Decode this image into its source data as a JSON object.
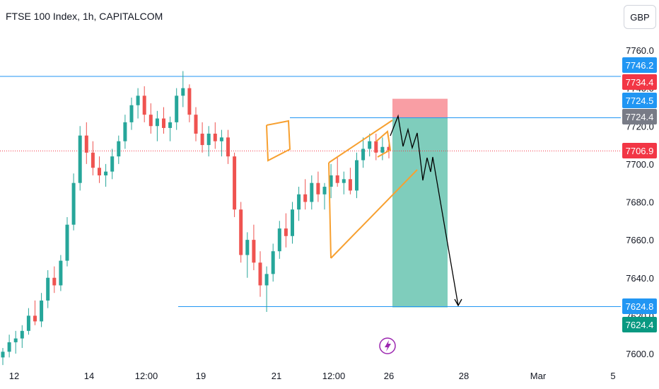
{
  "header": {
    "title": "FTSE 100 Index, 1h, CAPITALCOM",
    "currency": "GBP"
  },
  "colors": {
    "up": "#26a69a",
    "down": "#ef5350",
    "hline": "#2196f3",
    "pattern": "#f7a030",
    "target_zone": "#7fcdbc",
    "stop_zone": "#f99ea4",
    "projection": "#000000",
    "price_line": "#f23645"
  },
  "chart_data": {
    "type": "candlestick",
    "title": "FTSE 100 Index, 1h, CAPITALCOM",
    "y_axis": {
      "range": [
        7598,
        7766
      ],
      "ticks": [
        "7600.0",
        "7620.0",
        "7640.0",
        "7660.0",
        "7680.0",
        "7700.0",
        "7720.0",
        "7740.0",
        "7760.0"
      ],
      "tick_values": [
        7600,
        7620,
        7640,
        7660,
        7680,
        7700,
        7720,
        7740,
        7760
      ]
    },
    "x_axis": {
      "ticks": [
        "12",
        "14",
        "12:00",
        "19",
        "21",
        "12:00",
        "26",
        "28",
        "Mar",
        "5"
      ]
    },
    "price_labels": [
      {
        "value": 7746.2,
        "text": "7746.2",
        "color": "#2196f3"
      },
      {
        "value": 7734.4,
        "text": "7734.4",
        "color": "#f23645"
      },
      {
        "value": 7724.5,
        "text": "7724.5",
        "color": "#2196f3"
      },
      {
        "value": 7724.4,
        "text": "7724.4",
        "color": "#787b86"
      },
      {
        "value": 7706.9,
        "text": "7706.9",
        "color": "#f23645"
      },
      {
        "value": 7624.8,
        "text": "7624.8",
        "color": "#2196f3"
      },
      {
        "value": 7624.4,
        "text": "7624.4",
        "color": "#089981"
      }
    ],
    "horizontal_lines": [
      7746.2,
      7624.8
    ],
    "short_position": {
      "entry": 7724.4,
      "stop": 7734.4,
      "target": 7624.4
    },
    "current_price": 7706.9,
    "candles": [
      {
        "o": 7598,
        "h": 7603,
        "l": 7594,
        "c": 7601
      },
      {
        "o": 7601,
        "h": 7610,
        "l": 7598,
        "c": 7606
      },
      {
        "o": 7606,
        "h": 7612,
        "l": 7600,
        "c": 7608
      },
      {
        "o": 7608,
        "h": 7615,
        "l": 7603,
        "c": 7612
      },
      {
        "o": 7612,
        "h": 7624,
        "l": 7610,
        "c": 7620
      },
      {
        "o": 7620,
        "h": 7628,
        "l": 7615,
        "c": 7617
      },
      {
        "o": 7617,
        "h": 7632,
        "l": 7614,
        "c": 7628
      },
      {
        "o": 7628,
        "h": 7644,
        "l": 7624,
        "c": 7640
      },
      {
        "o": 7640,
        "h": 7646,
        "l": 7632,
        "c": 7636
      },
      {
        "o": 7636,
        "h": 7652,
        "l": 7633,
        "c": 7649
      },
      {
        "o": 7649,
        "h": 7672,
        "l": 7646,
        "c": 7668
      },
      {
        "o": 7668,
        "h": 7695,
        "l": 7665,
        "c": 7690
      },
      {
        "o": 7690,
        "h": 7720,
        "l": 7686,
        "c": 7715
      },
      {
        "o": 7715,
        "h": 7722,
        "l": 7700,
        "c": 7706
      },
      {
        "o": 7706,
        "h": 7712,
        "l": 7694,
        "c": 7698
      },
      {
        "o": 7698,
        "h": 7704,
        "l": 7690,
        "c": 7694
      },
      {
        "o": 7694,
        "h": 7700,
        "l": 7688,
        "c": 7696
      },
      {
        "o": 7696,
        "h": 7708,
        "l": 7692,
        "c": 7704
      },
      {
        "o": 7704,
        "h": 7715,
        "l": 7700,
        "c": 7712
      },
      {
        "o": 7712,
        "h": 7726,
        "l": 7708,
        "c": 7722
      },
      {
        "o": 7722,
        "h": 7735,
        "l": 7718,
        "c": 7731
      },
      {
        "o": 7731,
        "h": 7740,
        "l": 7724,
        "c": 7736
      },
      {
        "o": 7736,
        "h": 7741,
        "l": 7722,
        "c": 7726
      },
      {
        "o": 7726,
        "h": 7732,
        "l": 7716,
        "c": 7720
      },
      {
        "o": 7720,
        "h": 7728,
        "l": 7712,
        "c": 7724
      },
      {
        "o": 7724,
        "h": 7730,
        "l": 7716,
        "c": 7719
      },
      {
        "o": 7719,
        "h": 7725,
        "l": 7712,
        "c": 7722
      },
      {
        "o": 7722,
        "h": 7740,
        "l": 7718,
        "c": 7736
      },
      {
        "o": 7736,
        "h": 7749,
        "l": 7730,
        "c": 7740
      },
      {
        "o": 7740,
        "h": 7742,
        "l": 7722,
        "c": 7726
      },
      {
        "o": 7726,
        "h": 7730,
        "l": 7712,
        "c": 7716
      },
      {
        "o": 7716,
        "h": 7722,
        "l": 7706,
        "c": 7710
      },
      {
        "o": 7710,
        "h": 7720,
        "l": 7704,
        "c": 7716
      },
      {
        "o": 7716,
        "h": 7722,
        "l": 7708,
        "c": 7712
      },
      {
        "o": 7712,
        "h": 7718,
        "l": 7704,
        "c": 7714
      },
      {
        "o": 7714,
        "h": 7718,
        "l": 7700,
        "c": 7704
      },
      {
        "o": 7704,
        "h": 7706,
        "l": 7672,
        "c": 7676
      },
      {
        "o": 7676,
        "h": 7680,
        "l": 7648,
        "c": 7652
      },
      {
        "o": 7652,
        "h": 7664,
        "l": 7640,
        "c": 7660
      },
      {
        "o": 7660,
        "h": 7668,
        "l": 7644,
        "c": 7648
      },
      {
        "o": 7648,
        "h": 7654,
        "l": 7630,
        "c": 7636
      },
      {
        "o": 7636,
        "h": 7646,
        "l": 7622,
        "c": 7642
      },
      {
        "o": 7642,
        "h": 7658,
        "l": 7638,
        "c": 7654
      },
      {
        "o": 7654,
        "h": 7670,
        "l": 7650,
        "c": 7666
      },
      {
        "o": 7666,
        "h": 7674,
        "l": 7656,
        "c": 7662
      },
      {
        "o": 7662,
        "h": 7680,
        "l": 7658,
        "c": 7676
      },
      {
        "o": 7676,
        "h": 7688,
        "l": 7670,
        "c": 7684
      },
      {
        "o": 7684,
        "h": 7692,
        "l": 7676,
        "c": 7680
      },
      {
        "o": 7680,
        "h": 7694,
        "l": 7676,
        "c": 7690
      },
      {
        "o": 7690,
        "h": 7696,
        "l": 7680,
        "c": 7684
      },
      {
        "o": 7684,
        "h": 7690,
        "l": 7676,
        "c": 7688
      },
      {
        "o": 7688,
        "h": 7700,
        "l": 7682,
        "c": 7694
      },
      {
        "o": 7694,
        "h": 7704,
        "l": 7688,
        "c": 7690
      },
      {
        "o": 7690,
        "h": 7696,
        "l": 7684,
        "c": 7692
      },
      {
        "o": 7692,
        "h": 7698,
        "l": 7684,
        "c": 7686
      },
      {
        "o": 7686,
        "h": 7706,
        "l": 7682,
        "c": 7702
      },
      {
        "o": 7702,
        "h": 7714,
        "l": 7698,
        "c": 7708
      },
      {
        "o": 7708,
        "h": 7716,
        "l": 7704,
        "c": 7712
      },
      {
        "o": 7712,
        "h": 7716,
        "l": 7702,
        "c": 7706
      },
      {
        "o": 7706,
        "h": 7714,
        "l": 7702,
        "c": 7709
      },
      {
        "o": 7709,
        "h": 7713,
        "l": 7703,
        "c": 7707
      }
    ]
  },
  "watermark": {
    "icon": "lightning-bolt-icon"
  }
}
